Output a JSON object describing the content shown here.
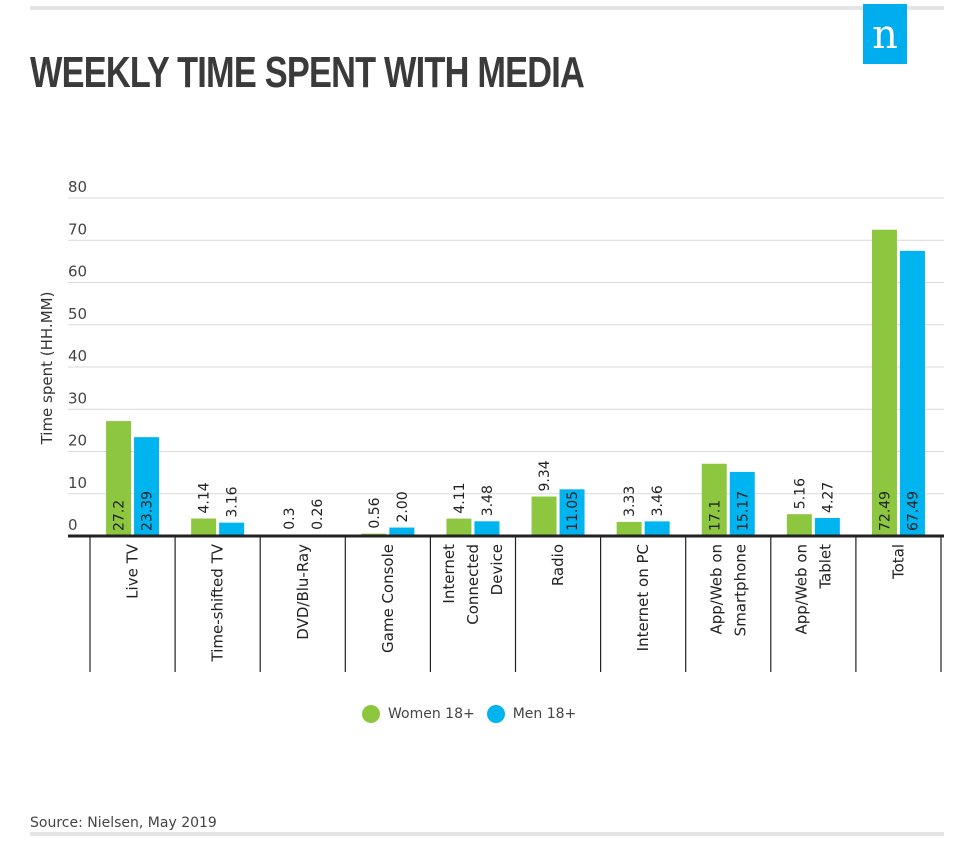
{
  "title": "WEEKLY TIME SPENT WITH MEDIA",
  "logo_letter": "n",
  "source": "Source: Nielsen, May 2019",
  "colors": {
    "women": "#8dc63f",
    "men": "#00b4f0",
    "logo": "#00aeef"
  },
  "chart_data": {
    "type": "bar",
    "title": "WEEKLY TIME SPENT WITH MEDIA",
    "xlabel": "",
    "ylabel": "Time spent (HH.MM)",
    "ylim": [
      0,
      80
    ],
    "yticks": [
      0,
      10,
      20,
      30,
      40,
      50,
      60,
      70,
      80
    ],
    "grid": true,
    "legend_position": "bottom",
    "categories": [
      [
        "Live TV"
      ],
      [
        "Time-shifted TV"
      ],
      [
        "DVD/Blu-Ray"
      ],
      [
        "Game Console"
      ],
      [
        "Internet",
        "Connected",
        "Device"
      ],
      [
        "Radio"
      ],
      [
        "Internet on PC"
      ],
      [
        "App/Web on",
        "Smartphone"
      ],
      [
        "App/Web on",
        "Tablet"
      ],
      [
        "Total"
      ]
    ],
    "series": [
      {
        "name": "Women 18+",
        "values": [
          27.2,
          4.14,
          0.3,
          0.56,
          4.11,
          9.34,
          3.33,
          17.1,
          5.16,
          72.49
        ],
        "labels": [
          "27.2",
          "4.14",
          "0.3",
          "0.56",
          "4.11",
          "9.34",
          "3.33",
          "17.1",
          "5.16",
          "72.49"
        ]
      },
      {
        "name": "Men 18+",
        "values": [
          23.39,
          3.16,
          0.26,
          2.0,
          3.48,
          11.05,
          3.46,
          15.17,
          4.27,
          67.49
        ],
        "labels": [
          "23.39",
          "3.16",
          "0.26",
          "2.00",
          "3.48",
          "11.05",
          "3.46",
          "15.17",
          "4.27",
          "67.49"
        ]
      }
    ]
  }
}
